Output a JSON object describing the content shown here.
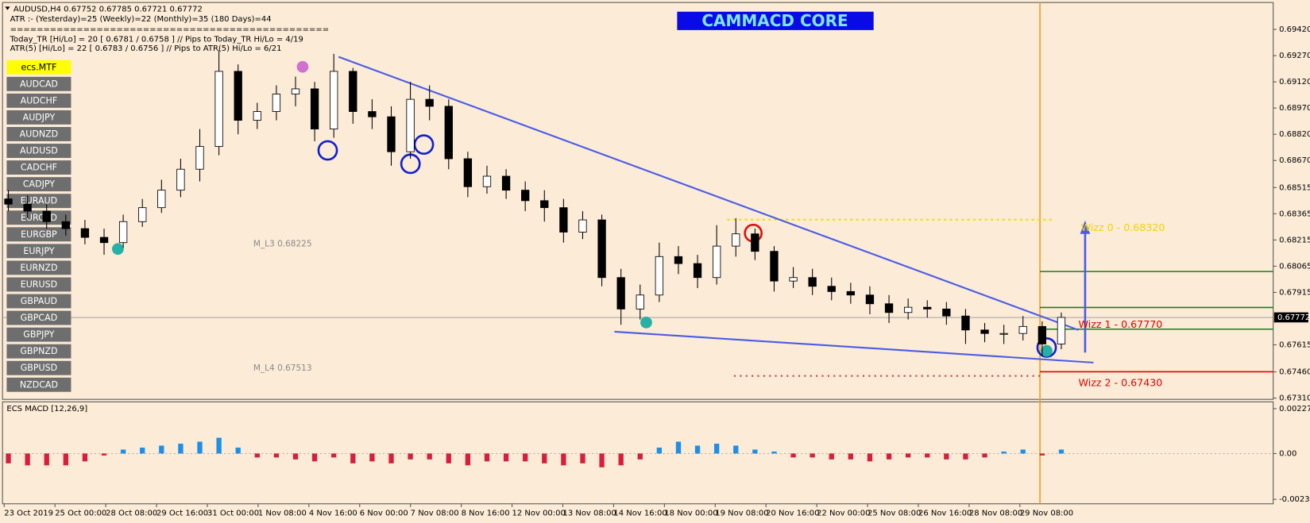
{
  "header": {
    "lines": [
      "AUDUSD,H4  0.67752 0.67785 0.67721 0.67772",
      "ATR :- (Yesterday)=25     (Weekly)=22     (Monthly)=35     (180 Days)=44",
      "================================================",
      "Today_TR [Hi/Lo] = 20 [ 0.6781 / 0.6758 ]  // Pips to Today_TR Hi/Lo  = 4/19",
      "ATR(5)      [Hi/Lo] = 22 [ 0.6783 / 0.6756 ]  // Pips to ATR(5) Hi/Lo     = 6/21"
    ]
  },
  "banner": "CAMMACD CORE",
  "symbols": [
    "ecs.MTF",
    "AUDCAD",
    "AUDCHF",
    "AUDJPY",
    "AUDNZD",
    "AUDUSD",
    "CADCHF",
    "CADJPY",
    "EURAUD",
    "EURCAD",
    "EURGBP",
    "EURJPY",
    "EURNZD",
    "EURUSD",
    "GBPAUD",
    "GBPCAD",
    "GBPJPY",
    "GBPNZD",
    "GBPUSD",
    "NZDCAD"
  ],
  "date_axis": [
    "23 Oct 2019",
    "25 Oct 00:00",
    "28 Oct 08:00",
    "29 Oct 16:00",
    "31 Oct 00:00",
    "1 Nov 08:00",
    "4 Nov 16:00",
    "6 Nov 00:00",
    "7 Nov 08:00",
    "8 Nov 16:00",
    "12 Nov 00:00",
    "13 Nov 08:00",
    "14 Nov 16:00",
    "18 Nov 00:00",
    "19 Nov 08:00",
    "20 Nov 16:00",
    "22 Nov 00:00",
    "25 Nov 08:00",
    "26 Nov 16:00",
    "28 Nov 08:00",
    "29 Nov 08:00"
  ],
  "annotations": [
    {
      "text": "Wizz 0 - 0.68320",
      "color": "#f2d400"
    },
    {
      "text": "Wizz 1 - 0.67770",
      "color": "#e00000"
    },
    {
      "text": "Wizz 2 - 0.67430",
      "color": "#e00000"
    },
    {
      "text": "M_L3 0.68225",
      "color": "#8a8a8a"
    },
    {
      "text": "M_L4 0.67513",
      "color": "#8a8a8a"
    }
  ],
  "chart_data": [
    {
      "type": "candlestick",
      "up_color": "#ffffff",
      "down_color": "#000000",
      "open": [
        0.6845,
        0.6842,
        0.6838,
        0.6832,
        0.6828,
        0.6823,
        0.682,
        0.6832,
        0.684,
        0.685,
        0.6862,
        0.6875,
        0.6918,
        0.689,
        0.6895,
        0.6905,
        0.6908,
        0.6885,
        0.6918,
        0.6895,
        0.6892,
        0.6872,
        0.6902,
        0.6898,
        0.6868,
        0.6852,
        0.6858,
        0.685,
        0.6844,
        0.684,
        0.6826,
        0.6833,
        0.68,
        0.6782,
        0.679,
        0.6812,
        0.6808,
        0.68,
        0.6818,
        0.6825,
        0.6815,
        0.6798,
        0.68,
        0.6795,
        0.6792,
        0.679,
        0.6785,
        0.678,
        0.6783,
        0.6782,
        0.6778,
        0.677,
        0.6768,
        0.6768,
        0.6772,
        0.6762
      ],
      "high": [
        0.685,
        0.6847,
        0.6842,
        0.6836,
        0.6833,
        0.6828,
        0.6836,
        0.6845,
        0.6856,
        0.6868,
        0.6885,
        0.693,
        0.6922,
        0.69,
        0.691,
        0.6915,
        0.6912,
        0.6928,
        0.692,
        0.6902,
        0.6898,
        0.6912,
        0.691,
        0.6902,
        0.6872,
        0.6864,
        0.6862,
        0.6855,
        0.685,
        0.6845,
        0.6838,
        0.6836,
        0.6805,
        0.6796,
        0.682,
        0.6818,
        0.6813,
        0.683,
        0.6834,
        0.6828,
        0.6818,
        0.6806,
        0.6805,
        0.68,
        0.6797,
        0.6795,
        0.679,
        0.6788,
        0.6787,
        0.6786,
        0.6782,
        0.6774,
        0.6773,
        0.6778,
        0.6775,
        0.678
      ],
      "low": [
        0.6838,
        0.6834,
        0.6828,
        0.6824,
        0.6819,
        0.6813,
        0.6817,
        0.6829,
        0.6837,
        0.6846,
        0.6855,
        0.687,
        0.6882,
        0.6885,
        0.689,
        0.6898,
        0.6878,
        0.688,
        0.6888,
        0.6885,
        0.6864,
        0.6868,
        0.689,
        0.6862,
        0.6846,
        0.6848,
        0.6845,
        0.6838,
        0.6832,
        0.682,
        0.6822,
        0.6795,
        0.6773,
        0.6776,
        0.6786,
        0.6802,
        0.6794,
        0.6796,
        0.6812,
        0.681,
        0.6792,
        0.6794,
        0.679,
        0.6787,
        0.6785,
        0.6779,
        0.6774,
        0.6776,
        0.6777,
        0.6773,
        0.6762,
        0.6763,
        0.6762,
        0.6764,
        0.6755,
        0.6759
      ],
      "close": [
        0.6842,
        0.6838,
        0.6832,
        0.6828,
        0.6823,
        0.682,
        0.6832,
        0.684,
        0.685,
        0.6862,
        0.6875,
        0.6918,
        0.689,
        0.6895,
        0.6905,
        0.6908,
        0.6885,
        0.6918,
        0.6895,
        0.6892,
        0.6872,
        0.6902,
        0.6898,
        0.6868,
        0.6852,
        0.6858,
        0.685,
        0.6844,
        0.684,
        0.6826,
        0.6833,
        0.68,
        0.6782,
        0.679,
        0.6812,
        0.6808,
        0.68,
        0.6818,
        0.6825,
        0.6815,
        0.6798,
        0.68,
        0.6795,
        0.6792,
        0.679,
        0.6785,
        0.678,
        0.6783,
        0.6782,
        0.6778,
        0.677,
        0.6768,
        0.6768,
        0.6772,
        0.6762,
        0.67772
      ],
      "ylim": [
        0.67303,
        0.69574
      ],
      "yticks": [
        {
          "value": 0.6942,
          "label": "0.69420"
        },
        {
          "value": 0.6927,
          "label": "0.69270"
        },
        {
          "value": 0.6912,
          "label": "0.69120"
        },
        {
          "value": 0.6897,
          "label": "0.68970"
        },
        {
          "value": 0.6882,
          "label": "0.68820"
        },
        {
          "value": 0.6867,
          "label": "0.68670"
        },
        0.68515,
        0.68365,
        0.68215,
        0.68065,
        0.67915,
        0.67615,
        {
          "value": 0.6746,
          "label": "0.67460"
        },
        {
          "value": 0.6731,
          "label": "0.67310"
        }
      ]
    },
    {
      "type": "bar",
      "title": "ECS MACD [12,26,9]",
      "pos_color": "#1e8fe8",
      "neg_color": "#d81e3c",
      "values": [
        -0.0005,
        -0.0006,
        -0.0006,
        -0.0006,
        -0.0004,
        -0.0001,
        0.0002,
        0.0003,
        0.0004,
        0.0005,
        0.0006,
        0.0008,
        0.0003,
        -0.0002,
        -0.0002,
        -0.0003,
        -0.0004,
        -0.0002,
        -0.0005,
        -0.0004,
        -0.0005,
        -0.0003,
        -0.0003,
        -0.0005,
        -0.0006,
        -0.0004,
        -0.0004,
        -0.0004,
        -0.0005,
        -0.0006,
        -0.0005,
        -0.0007,
        -0.0006,
        -0.0003,
        0.0003,
        0.0006,
        0.0004,
        0.0005,
        0.0004,
        0.0002,
        0.0001,
        -0.0002,
        -0.0002,
        -0.0003,
        -0.0003,
        -0.0004,
        -0.0003,
        -0.0002,
        -0.0002,
        -0.0003,
        -0.0003,
        -0.0002,
        0.0001,
        0.0002,
        -0.0001,
        0.0002
      ],
      "ylim": [
        -0.00251,
        0.00258
      ],
      "yticks": [
        0.0022785,
        {
          "value": 0,
          "label": "0.00"
        },
        -0.002326
      ]
    }
  ]
}
